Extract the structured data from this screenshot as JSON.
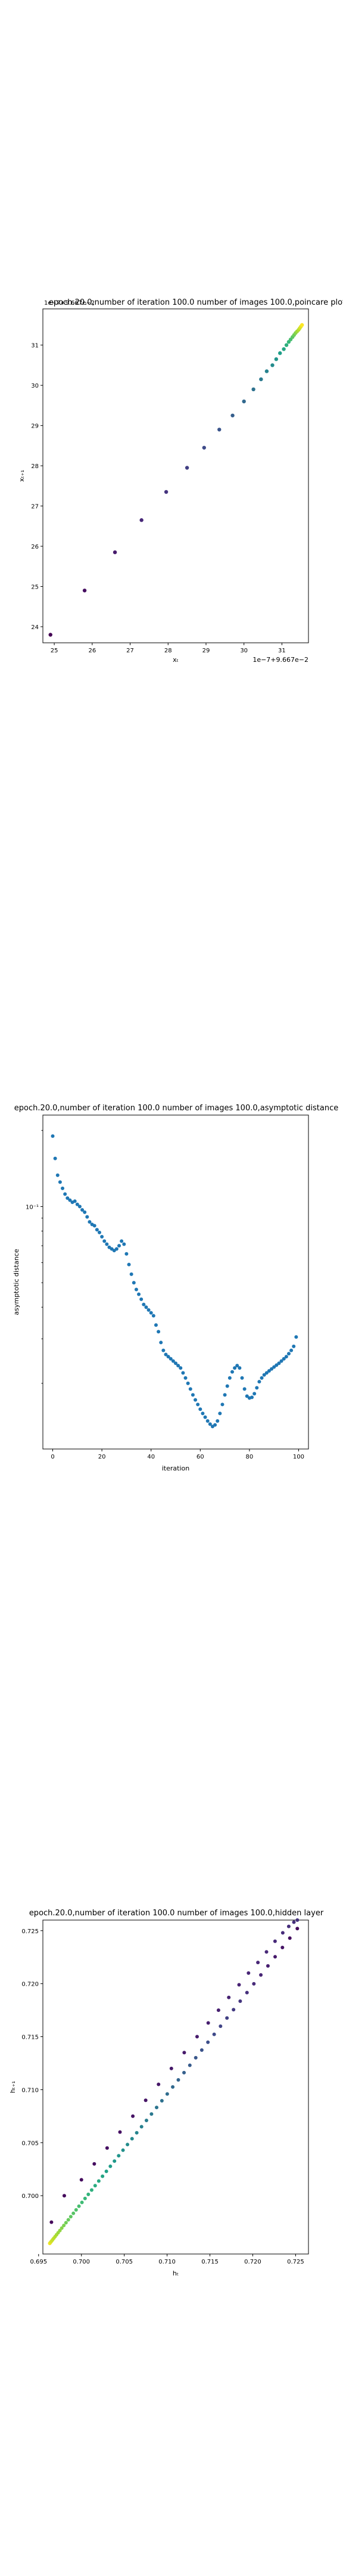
{
  "chart_data": [
    {
      "type": "scatter",
      "title": "epoch.20.0,number of iteration 100.0  number of images 100.0,poincare plot",
      "corner_text": "1e−7+9.667e−2",
      "xlabel": "xₜ",
      "ylabel": "xₜ₊₁",
      "offset_text": "1e−7+9.667e−2",
      "xlim": [
        24.7,
        31.7
      ],
      "ylim": [
        23.6,
        31.9
      ],
      "xticks": [
        25,
        26,
        27,
        28,
        29,
        30,
        31
      ],
      "yticks": [
        24,
        25,
        26,
        27,
        28,
        29,
        30,
        31
      ],
      "grid": false,
      "colormap": "viridis",
      "points": [
        [
          24.9,
          23.8
        ],
        [
          25.8,
          24.9
        ],
        [
          26.6,
          25.85
        ],
        [
          27.3,
          26.65
        ],
        [
          27.95,
          27.35
        ],
        [
          28.5,
          27.95
        ],
        [
          28.95,
          28.45
        ],
        [
          29.35,
          28.9
        ],
        [
          29.7,
          29.25
        ],
        [
          30.0,
          29.6
        ],
        [
          30.25,
          29.9
        ],
        [
          30.45,
          30.15
        ],
        [
          30.6,
          30.35
        ],
        [
          30.75,
          30.5
        ],
        [
          30.85,
          30.65
        ],
        [
          30.95,
          30.8
        ],
        [
          31.05,
          30.9
        ],
        [
          31.12,
          31.0
        ],
        [
          31.18,
          31.08
        ],
        [
          31.23,
          31.14
        ],
        [
          31.28,
          31.2
        ],
        [
          31.32,
          31.25
        ],
        [
          31.36,
          31.3
        ],
        [
          31.4,
          31.34
        ],
        [
          31.44,
          31.38
        ],
        [
          31.47,
          31.42
        ],
        [
          31.5,
          31.46
        ],
        [
          31.53,
          31.5
        ]
      ]
    },
    {
      "type": "scatter",
      "title": "epoch.20.0,number of iteration 100.0  number of images 100.0,asymptotic distance",
      "xlabel": "iteration",
      "ylabel": "asymptotic distance",
      "yscale": "log",
      "xlim": [
        -4,
        104
      ],
      "ylim": [
        0.011,
        0.23
      ],
      "xticks": [
        0,
        20,
        40,
        60,
        80,
        100
      ],
      "yticks": [
        0.1
      ],
      "ytick_labels": [
        "10⁻¹"
      ],
      "grid": false,
      "color": "#1f77b4",
      "x": [
        0,
        1,
        2,
        3,
        4,
        5,
        6,
        7,
        8,
        9,
        10,
        11,
        12,
        13,
        14,
        15,
        16,
        17,
        18,
        19,
        20,
        21,
        22,
        23,
        24,
        25,
        26,
        27,
        28,
        29,
        30,
        31,
        32,
        33,
        34,
        35,
        36,
        37,
        38,
        39,
        40,
        41,
        42,
        43,
        44,
        45,
        46,
        47,
        48,
        49,
        50,
        51,
        52,
        53,
        54,
        55,
        56,
        57,
        58,
        59,
        60,
        61,
        62,
        63,
        64,
        65,
        66,
        67,
        68,
        69,
        70,
        71,
        72,
        73,
        74,
        75,
        76,
        77,
        78,
        79,
        80,
        81,
        82,
        83,
        84,
        85,
        86,
        87,
        88,
        89,
        90,
        91,
        92,
        93,
        94,
        95,
        96,
        97,
        98,
        99
      ],
      "y": [
        0.19,
        0.155,
        0.133,
        0.125,
        0.118,
        0.112,
        0.108,
        0.106,
        0.104,
        0.105,
        0.102,
        0.1,
        0.097,
        0.095,
        0.091,
        0.087,
        0.085,
        0.084,
        0.081,
        0.079,
        0.076,
        0.073,
        0.071,
        0.069,
        0.068,
        0.067,
        0.068,
        0.07,
        0.073,
        0.071,
        0.065,
        0.059,
        0.054,
        0.05,
        0.047,
        0.045,
        0.043,
        0.041,
        0.04,
        0.039,
        0.038,
        0.037,
        0.034,
        0.032,
        0.029,
        0.027,
        0.026,
        0.0255,
        0.025,
        0.0245,
        0.024,
        0.0235,
        0.023,
        0.022,
        0.021,
        0.02,
        0.019,
        0.018,
        0.0172,
        0.0165,
        0.0158,
        0.0152,
        0.0147,
        0.0142,
        0.0138,
        0.0135,
        0.0137,
        0.0142,
        0.0152,
        0.0165,
        0.018,
        0.0195,
        0.021,
        0.0222,
        0.023,
        0.0235,
        0.023,
        0.021,
        0.019,
        0.0178,
        0.0175,
        0.0176,
        0.0182,
        0.0192,
        0.0203,
        0.021,
        0.0216,
        0.022,
        0.0224,
        0.0228,
        0.0232,
        0.0236,
        0.024,
        0.0245,
        0.025,
        0.0255,
        0.0262,
        0.027,
        0.028,
        0.0305
      ]
    },
    {
      "type": "scatter",
      "title": "epoch.20.0,number of iteration 100.0  number of images 100.0,hidden layer",
      "xlabel": "hₜ",
      "ylabel": "hₜ₊₁",
      "xlim": [
        0.6955,
        0.7265
      ],
      "ylim": [
        0.6945,
        0.726
      ],
      "xticks": [
        0.695,
        0.7,
        0.705,
        0.71,
        0.715,
        0.72,
        0.725
      ],
      "xtick_labels": [
        "0.695",
        "0.700",
        "0.705",
        "0.710",
        "0.715",
        "0.720",
        "0.725"
      ],
      "yticks": [
        0.7,
        0.705,
        0.71,
        0.715,
        0.72,
        0.725
      ],
      "ytick_labels": [
        "0.700",
        "0.705",
        "0.710",
        "0.715",
        "0.720",
        "0.725"
      ],
      "grid": false,
      "colormap": "viridis",
      "upper_branch": [
        [
          0.6965,
          0.6975
        ],
        [
          0.698,
          0.7
        ],
        [
          0.7,
          0.7015
        ],
        [
          0.7015,
          0.703
        ],
        [
          0.703,
          0.7045
        ],
        [
          0.7045,
          0.706
        ],
        [
          0.706,
          0.7075
        ],
        [
          0.7075,
          0.709
        ],
        [
          0.709,
          0.7105
        ],
        [
          0.7105,
          0.712
        ],
        [
          0.712,
          0.7135
        ],
        [
          0.7135,
          0.715
        ],
        [
          0.7148,
          0.7163
        ],
        [
          0.716,
          0.7175
        ],
        [
          0.7172,
          0.7187
        ],
        [
          0.7184,
          0.7199
        ],
        [
          0.7195,
          0.721
        ],
        [
          0.7206,
          0.722
        ],
        [
          0.7216,
          0.723
        ],
        [
          0.7226,
          0.724
        ],
        [
          0.7235,
          0.7248
        ],
        [
          0.7242,
          0.7254
        ],
        [
          0.7248,
          0.7258
        ],
        [
          0.7252,
          0.726
        ]
      ],
      "lower_branch_start": [
        0.6963,
        0.6955
      ],
      "lower_branch_end": [
        0.7252,
        0.7252
      ],
      "lower_branch_count": 60
    }
  ]
}
